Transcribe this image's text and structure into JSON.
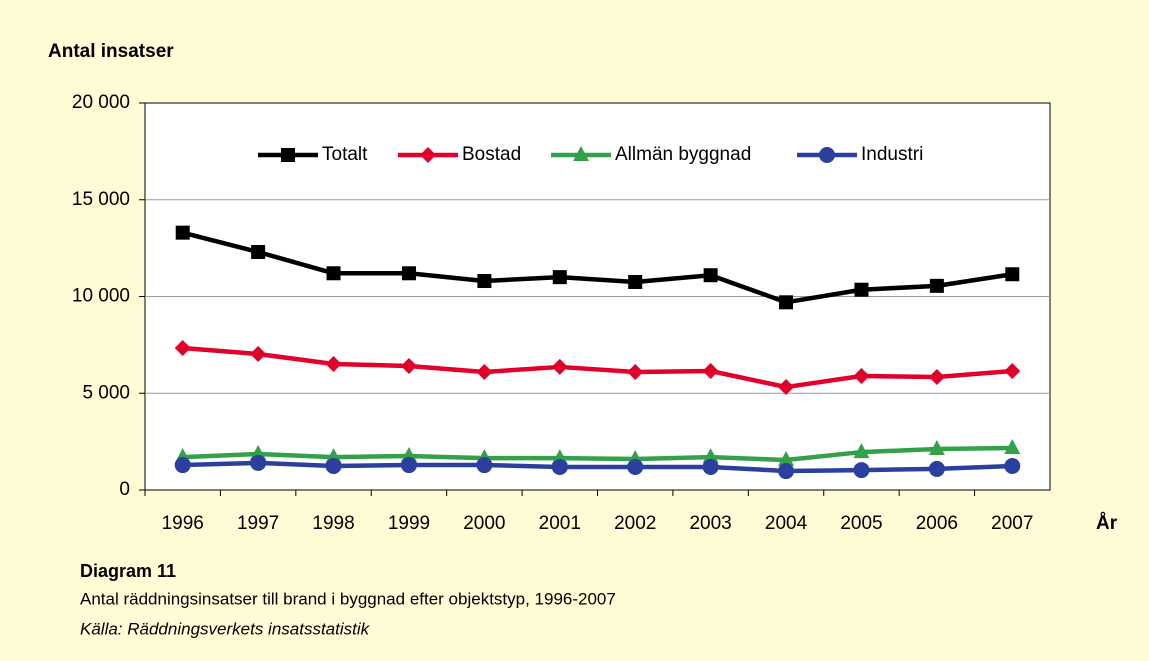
{
  "chart_data": {
    "type": "line",
    "y_label": "Antal insatser",
    "x_label": "År",
    "caption_title": "Diagram 11",
    "caption": "Antal räddningsinsatser till brand i byggnad efter objektstyp, 1996-2007",
    "source": "Källa: Räddningsverkets insatsstatistik",
    "categories": [
      "1996",
      "1997",
      "1998",
      "1999",
      "2000",
      "2001",
      "2002",
      "2003",
      "2004",
      "2005",
      "2006",
      "2007"
    ],
    "series": [
      {
        "name": "Totalt",
        "color": "#000000",
        "marker": "square",
        "values": [
          13300,
          12300,
          11200,
          11200,
          10800,
          11000,
          10750,
          11100,
          9700,
          10350,
          10550,
          11150
        ]
      },
      {
        "name": "Bostad",
        "color": "#e0002a",
        "marker": "diamond",
        "values": [
          7340,
          7030,
          6510,
          6410,
          6100,
          6360,
          6100,
          6150,
          5320,
          5890,
          5840,
          6150
        ]
      },
      {
        "name": "Allmän byggnad",
        "color": "#33a04a",
        "marker": "triangle",
        "values": [
          1700,
          1860,
          1700,
          1760,
          1650,
          1650,
          1600,
          1700,
          1550,
          1960,
          2120,
          2170
        ]
      },
      {
        "name": "Industri",
        "color": "#2a3f9e",
        "marker": "circle",
        "values": [
          1290,
          1400,
          1240,
          1290,
          1290,
          1190,
          1190,
          1190,
          980,
          1030,
          1090,
          1240
        ]
      }
    ],
    "ylim": [
      0,
      20000
    ],
    "yticks": [
      0,
      {
        "value": 5000,
        "label": "5 000"
      },
      {
        "value": 10000,
        "label": "10 000"
      },
      {
        "value": 15000,
        "label": "15 000"
      },
      {
        "value": 20000,
        "label": "20 000"
      }
    ],
    "grid": true,
    "legend": "top"
  }
}
